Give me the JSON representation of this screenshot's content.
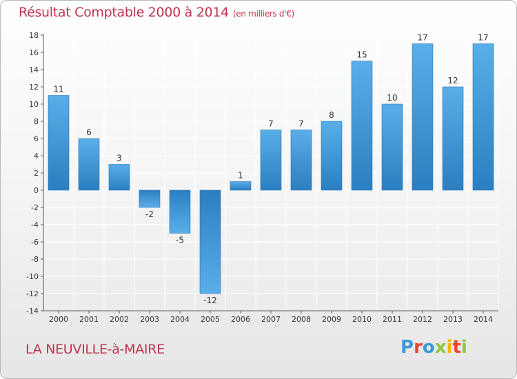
{
  "header": {
    "title": "Résultat Comptable 2000 à 2014",
    "unit": "(en milliers d'€)"
  },
  "footer": {
    "commune": "LA NEUVILLE-à-MAIRE",
    "logo_text": "Proxiti",
    "logo_colors": [
      "#3a9ad9",
      "#e8462d",
      "#3a9ad9",
      "#8dc63f",
      "#f7b500",
      "#e8462d",
      "#8dc63f"
    ]
  },
  "colors": {
    "bar_light": "#5aaee8",
    "bar_dark": "#2b7fc1",
    "title": "#c0334d",
    "grid": "#ffffff",
    "axis": "#555555"
  },
  "chart_data": {
    "type": "bar",
    "title": "Résultat Comptable 2000 à 2014",
    "xlabel": "",
    "ylabel": "(en milliers d'€)",
    "categories": [
      "2000",
      "2001",
      "2002",
      "2003",
      "2004",
      "2005",
      "2006",
      "2007",
      "2008",
      "2009",
      "2010",
      "2011",
      "2012",
      "2013",
      "2014"
    ],
    "values": [
      11,
      6,
      3,
      -2,
      -5,
      -12,
      1,
      7,
      7,
      8,
      15,
      10,
      17,
      12,
      17
    ],
    "ylim": [
      -14,
      18
    ],
    "yticks": [
      -14,
      -12,
      -10,
      -8,
      -6,
      -4,
      -2,
      0,
      2,
      4,
      6,
      8,
      10,
      12,
      14,
      16,
      18
    ],
    "grid": true
  }
}
